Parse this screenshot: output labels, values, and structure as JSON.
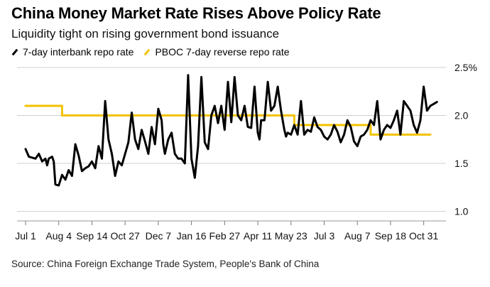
{
  "header": {
    "title": "China Money Market Rate Rises Above Policy Rate",
    "subtitle": "Liquidity tight on rising government bond issuance"
  },
  "footer": {
    "source": "Source: China Foreign Exchange Trade System, People's Bank of China"
  },
  "colors": {
    "repo": "#000000",
    "policy": "#f2c300",
    "grid": "#cfcfcf"
  },
  "chart_data": {
    "type": "line",
    "title": "China Money Market Rate Rises Above Policy Rate",
    "subtitle": "Liquidity tight on rising government bond issuance",
    "xlabel": "",
    "ylabel": "",
    "ylim": [
      0.9,
      2.5
    ],
    "xlim": [
      0,
      125
    ],
    "y_ticks": [
      {
        "value": 2.5,
        "label": "2.5%"
      },
      {
        "value": 2.0,
        "label": "2.0"
      },
      {
        "value": 1.5,
        "label": "1.5"
      },
      {
        "value": 1.0,
        "label": "1.0"
      }
    ],
    "x_ticks": [
      {
        "x": 0,
        "label": "Jul 1"
      },
      {
        "x": 10,
        "label": "Aug 4"
      },
      {
        "x": 20,
        "label": "Sep 14"
      },
      {
        "x": 30,
        "label": "Oct 27"
      },
      {
        "x": 40,
        "label": "Dec 7"
      },
      {
        "x": 50,
        "label": "Jan 16"
      },
      {
        "x": 60,
        "label": "Feb 27"
      },
      {
        "x": 70,
        "label": "Apr 11"
      },
      {
        "x": 80,
        "label": "May 23"
      },
      {
        "x": 90,
        "label": "Jul 3"
      },
      {
        "x": 100,
        "label": "Aug 7"
      },
      {
        "x": 110,
        "label": "Sep 18"
      },
      {
        "x": 120,
        "label": "Oct 31"
      }
    ],
    "grid": true,
    "legend_position": "top-left",
    "series": [
      {
        "name": "7-day interbank repo rate",
        "points": [
          [
            0,
            1.65
          ],
          [
            1,
            1.57
          ],
          [
            2,
            1.56
          ],
          [
            3,
            1.55
          ],
          [
            4,
            1.6
          ],
          [
            5,
            1.52
          ],
          [
            6,
            1.55
          ],
          [
            6.5,
            1.48
          ],
          [
            7,
            1.55
          ],
          [
            8,
            1.57
          ],
          [
            8.5,
            1.52
          ],
          [
            9,
            1.28
          ],
          [
            10,
            1.27
          ],
          [
            11,
            1.38
          ],
          [
            12,
            1.33
          ],
          [
            13,
            1.43
          ],
          [
            14,
            1.37
          ],
          [
            15,
            1.7
          ],
          [
            16,
            1.58
          ],
          [
            17,
            1.42
          ],
          [
            18,
            1.45
          ],
          [
            19,
            1.47
          ],
          [
            20,
            1.52
          ],
          [
            21,
            1.45
          ],
          [
            22,
            1.68
          ],
          [
            23,
            1.55
          ],
          [
            24,
            2.15
          ],
          [
            25,
            1.75
          ],
          [
            26,
            1.6
          ],
          [
            27,
            1.37
          ],
          [
            28,
            1.52
          ],
          [
            29,
            1.48
          ],
          [
            30,
            1.6
          ],
          [
            31,
            1.72
          ],
          [
            32,
            2.03
          ],
          [
            33,
            1.75
          ],
          [
            34,
            1.65
          ],
          [
            35,
            1.85
          ],
          [
            36,
            1.73
          ],
          [
            37,
            1.6
          ],
          [
            38,
            1.88
          ],
          [
            39,
            1.7
          ],
          [
            40,
            2.07
          ],
          [
            41,
            1.95
          ],
          [
            41.5,
            1.7
          ],
          [
            42,
            1.6
          ],
          [
            43,
            1.75
          ],
          [
            44,
            1.82
          ],
          [
            45,
            1.6
          ],
          [
            46,
            1.55
          ],
          [
            47,
            1.55
          ],
          [
            48,
            1.5
          ],
          [
            49,
            2.42
          ],
          [
            50,
            1.55
          ],
          [
            51,
            1.35
          ],
          [
            52,
            1.68
          ],
          [
            53,
            2.4
          ],
          [
            54,
            1.72
          ],
          [
            55,
            1.65
          ],
          [
            56,
            2.0
          ],
          [
            57,
            2.1
          ],
          [
            58,
            1.92
          ],
          [
            59,
            2.1
          ],
          [
            60,
            1.85
          ],
          [
            61,
            2.35
          ],
          [
            62,
            1.93
          ],
          [
            63,
            2.4
          ],
          [
            64,
            2.0
          ],
          [
            65,
            1.95
          ],
          [
            66,
            2.1
          ],
          [
            67,
            1.88
          ],
          [
            68,
            1.87
          ],
          [
            69,
            2.3
          ],
          [
            70,
            1.82
          ],
          [
            70.5,
            1.75
          ],
          [
            71,
            1.95
          ],
          [
            72,
            1.95
          ],
          [
            73,
            2.35
          ],
          [
            74,
            2.05
          ],
          [
            75,
            2.1
          ],
          [
            76,
            2.3
          ],
          [
            77,
            2.05
          ],
          [
            78,
            1.85
          ],
          [
            78.5,
            1.78
          ],
          [
            79,
            1.82
          ],
          [
            80,
            1.8
          ],
          [
            81,
            1.9
          ],
          [
            82,
            1.8
          ],
          [
            83,
            2.15
          ],
          [
            84,
            1.8
          ],
          [
            85,
            1.85
          ],
          [
            86,
            1.83
          ],
          [
            87,
            1.98
          ],
          [
            88,
            1.88
          ],
          [
            89,
            1.85
          ],
          [
            90,
            1.78
          ],
          [
            91,
            1.75
          ],
          [
            92,
            1.8
          ],
          [
            93,
            1.9
          ],
          [
            94,
            1.83
          ],
          [
            95,
            1.72
          ],
          [
            96,
            1.8
          ],
          [
            97,
            1.95
          ],
          [
            98,
            1.88
          ],
          [
            99,
            1.73
          ],
          [
            100,
            1.68
          ],
          [
            101,
            1.78
          ],
          [
            102,
            1.8
          ],
          [
            103,
            1.85
          ],
          [
            104,
            1.95
          ],
          [
            105,
            1.9
          ],
          [
            106,
            2.15
          ],
          [
            107,
            1.75
          ],
          [
            108,
            1.85
          ],
          [
            109,
            1.9
          ],
          [
            110,
            1.87
          ],
          [
            111,
            1.95
          ],
          [
            112,
            2.05
          ],
          [
            113,
            1.8
          ],
          [
            114,
            2.15
          ],
          [
            115,
            2.1
          ],
          [
            116,
            2.05
          ],
          [
            117,
            1.9
          ],
          [
            118,
            1.82
          ],
          [
            119,
            1.95
          ],
          [
            120,
            2.3
          ],
          [
            121,
            2.05
          ],
          [
            122,
            2.1
          ],
          [
            123,
            2.12
          ],
          [
            124,
            2.14
          ]
        ]
      },
      {
        "name": "PBOC 7-day reverse repo rate",
        "points": [
          [
            0,
            2.1
          ],
          [
            11,
            2.1
          ],
          [
            11,
            2.0
          ],
          [
            81,
            2.0
          ],
          [
            81,
            1.9
          ],
          [
            104,
            1.9
          ],
          [
            104,
            1.8
          ],
          [
            122,
            1.8
          ]
        ]
      }
    ]
  }
}
